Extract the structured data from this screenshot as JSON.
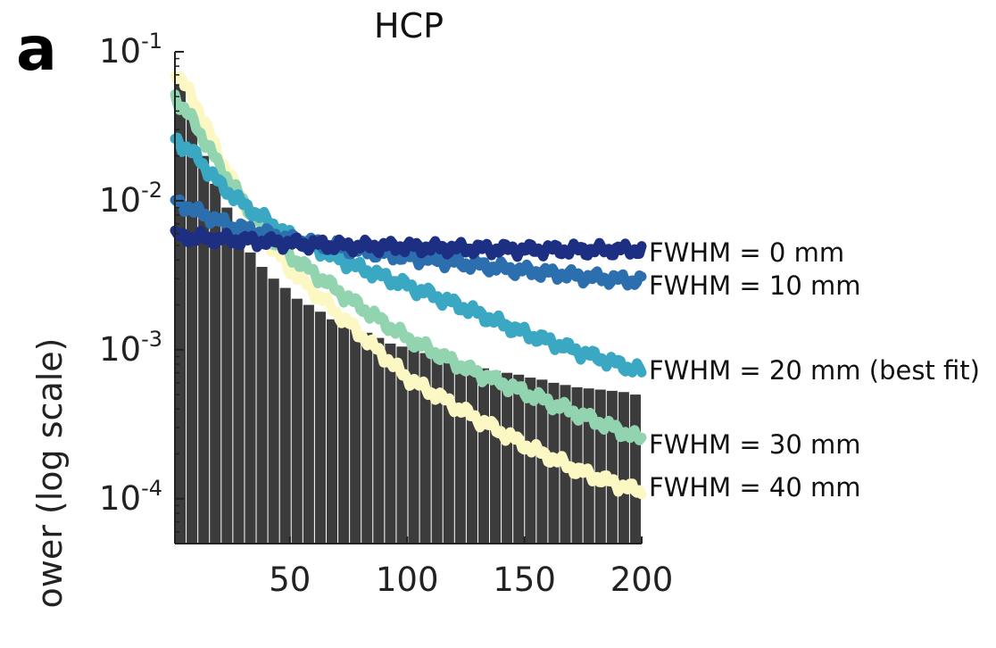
{
  "panel_label": "a",
  "chart_data": {
    "type": "line",
    "title": "HCP",
    "xlabel": "",
    "ylabel": "ower (log scale)",
    "x_range": [
      1,
      200
    ],
    "ylim": [
      5e-05,
      0.1
    ],
    "y_scale": "log",
    "grid": false,
    "x_ticks": [
      {
        "value": 50,
        "label": "50"
      },
      {
        "value": 100,
        "label": "100"
      },
      {
        "value": 150,
        "label": "150"
      },
      {
        "value": 200,
        "label": "200"
      }
    ],
    "y_ticks": [
      {
        "value": 0.1,
        "base": "10",
        "exp": "-1"
      },
      {
        "value": 0.01,
        "base": "10",
        "exp": "-2"
      },
      {
        "value": 0.001,
        "base": "10",
        "exp": "-3"
      },
      {
        "value": 0.0001,
        "base": "10",
        "exp": "-4"
      }
    ],
    "bars": {
      "color": "#3c3c3c",
      "values": [
        0.06,
        0.04,
        0.02,
        0.013,
        0.009,
        0.006,
        0.0045,
        0.0036,
        0.003,
        0.0026,
        0.0022,
        0.002,
        0.0018,
        0.0016,
        0.0015,
        0.0014,
        0.0013,
        0.0012,
        0.0011,
        0.00105,
        0.001,
        0.00095,
        0.0009,
        0.00085,
        0.0008,
        0.00078,
        0.00075,
        0.00072,
        0.0007,
        0.00068,
        0.00065,
        0.00063,
        0.0006,
        0.00058,
        0.00056,
        0.00055,
        0.00054,
        0.00053,
        0.00052,
        0.0005
      ]
    },
    "series": [
      {
        "name": "FWHM = 0 mm",
        "color": "#1d2f83",
        "x": [
          1,
          25,
          50,
          75,
          100,
          125,
          150,
          175,
          200
        ],
        "values": [
          0.0058,
          0.0055,
          0.0052,
          0.005,
          0.0049,
          0.0048,
          0.0047,
          0.0047,
          0.0047
        ]
      },
      {
        "name": "FWHM = 10 mm",
        "color": "#2c6fae",
        "x": [
          1,
          10,
          25,
          50,
          75,
          100,
          125,
          150,
          175,
          200
        ],
        "values": [
          0.01,
          0.0085,
          0.0068,
          0.0055,
          0.0048,
          0.0042,
          0.0038,
          0.0034,
          0.0031,
          0.0029
        ]
      },
      {
        "name": "FWHM = 20 mm (best fit)",
        "color": "#3aa8c3",
        "x": [
          1,
          10,
          20,
          30,
          50,
          75,
          100,
          125,
          150,
          175,
          200
        ],
        "values": [
          0.026,
          0.02,
          0.013,
          0.0095,
          0.0058,
          0.0038,
          0.0027,
          0.0019,
          0.0013,
          0.00095,
          0.00072
        ]
      },
      {
        "name": "FWHM = 30 mm",
        "color": "#92d4b0",
        "x": [
          1,
          10,
          20,
          30,
          40,
          50,
          75,
          100,
          125,
          150,
          175,
          200
        ],
        "values": [
          0.05,
          0.032,
          0.017,
          0.01,
          0.0062,
          0.0043,
          0.0022,
          0.0012,
          0.00075,
          0.00052,
          0.00036,
          0.00025
        ]
      },
      {
        "name": "FWHM = 40 mm",
        "color": "#fbf8c4",
        "x": [
          1,
          10,
          20,
          30,
          40,
          50,
          75,
          100,
          125,
          150,
          175,
          200
        ],
        "values": [
          0.075,
          0.045,
          0.02,
          0.01,
          0.0055,
          0.0035,
          0.0015,
          0.00065,
          0.00038,
          0.00023,
          0.00015,
          0.00011
        ]
      }
    ]
  }
}
